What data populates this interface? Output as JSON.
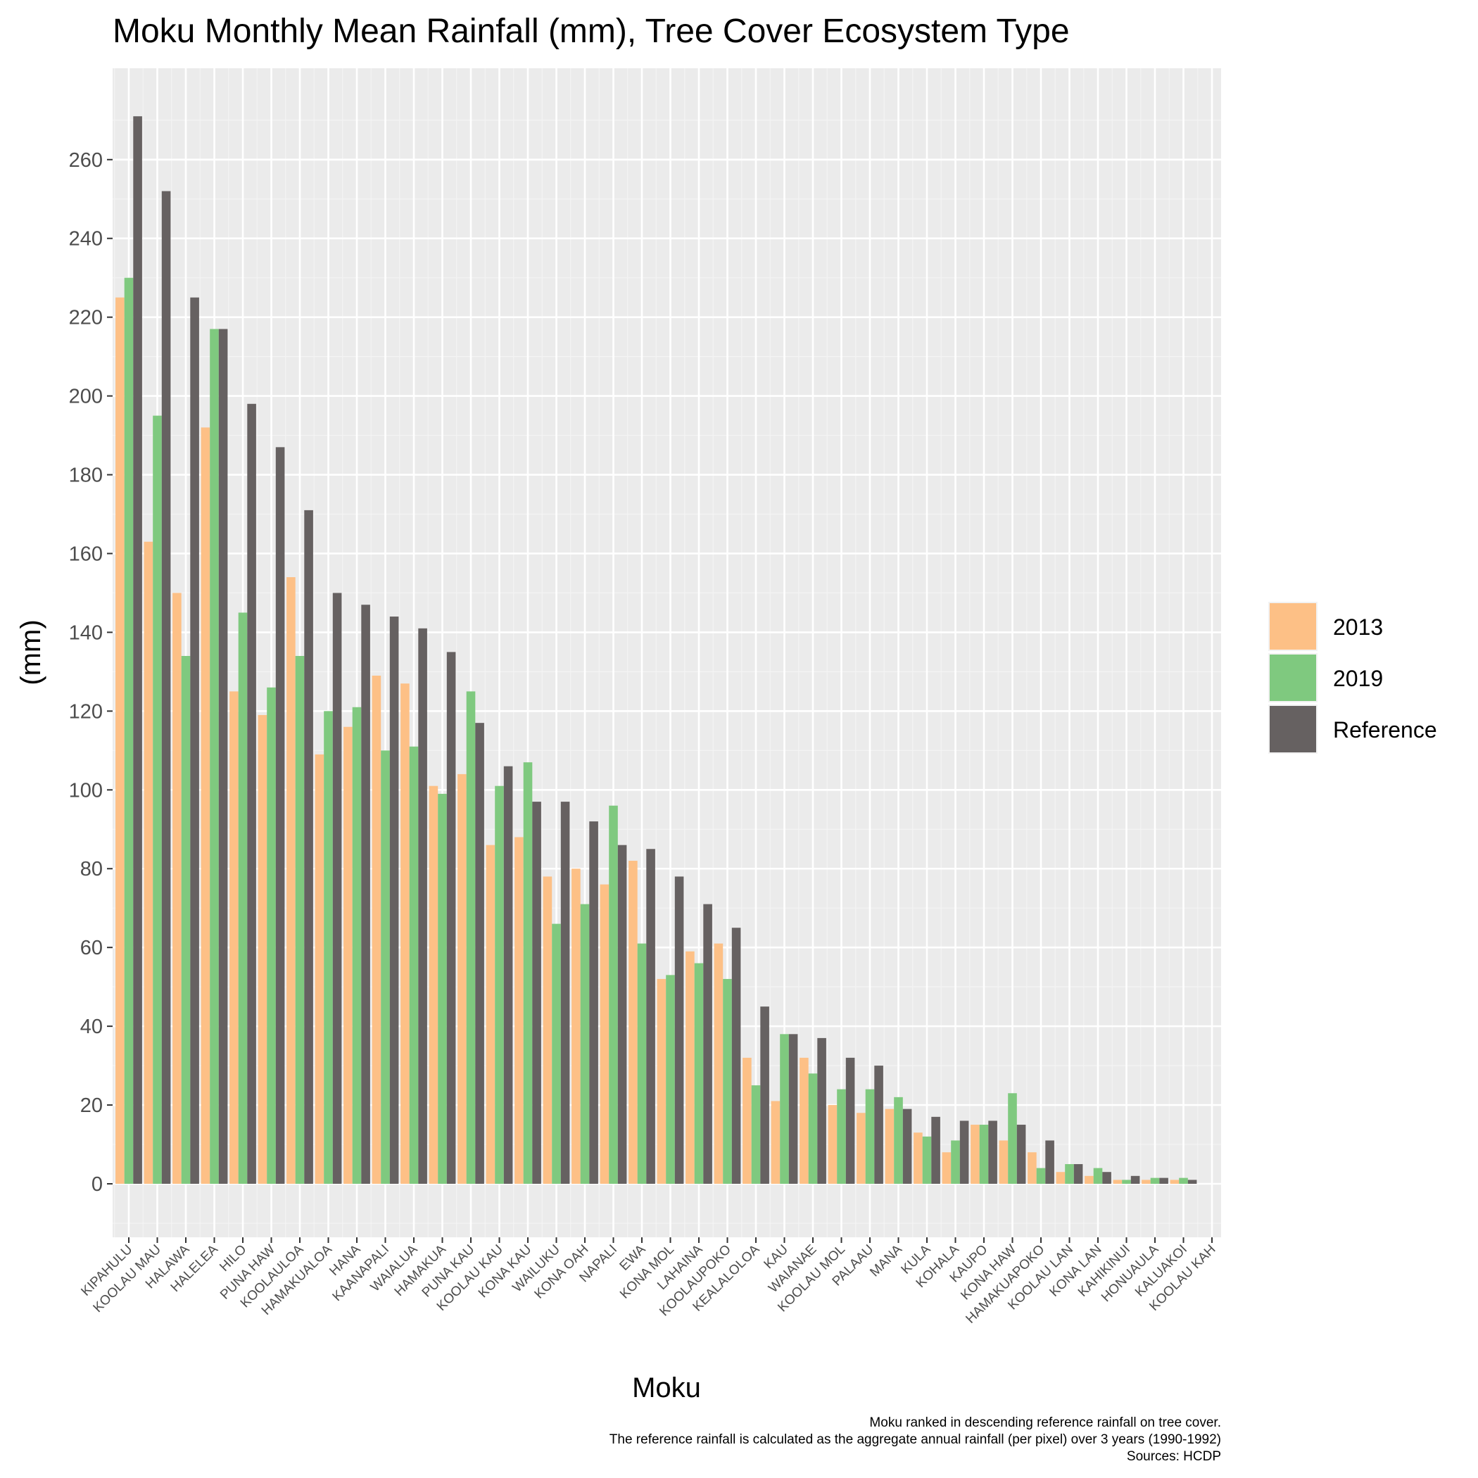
{
  "chart_data": {
    "type": "bar",
    "title": "Moku Monthly Mean Rainfall (mm), Tree Cover Ecosystem Type",
    "xlabel": "Moku",
    "ylabel": "(mm)",
    "ylim": [
      -12,
      285
    ],
    "yticks": [
      0,
      20,
      40,
      60,
      80,
      100,
      120,
      140,
      160,
      180,
      200,
      220,
      240,
      260
    ],
    "grid": true,
    "legend_position": "right",
    "categories": [
      "KIPAHULU",
      "KOOLAU MAU",
      "HALAWA",
      "HALELEA",
      "HILO",
      "PUNA HAW",
      "KOOLAULOA",
      "HAMAKUALOA",
      "HANA",
      "KAANAPALI",
      "WAIALUA",
      "HAMAKUA",
      "PUNA KAU",
      "KOOLAU KAU",
      "KONA KAU",
      "WAILUKU",
      "KONA OAH",
      "NAPALI",
      "EWA",
      "KONA MOL",
      "LAHAINA",
      "KOOLAUPOKO",
      "KEALALOLOA",
      "KAU",
      "WAIANAE",
      "KOOLAU MOL",
      "PALAAU",
      "MANA",
      "KULA",
      "KOHALA",
      "KAUPO",
      "KONA HAW",
      "HAMAKUAPOKO",
      "KOOLAU LAN",
      "KONA LAN",
      "KAHIKINUI",
      "HONUAULA",
      "KALUAKOI",
      "KOOLAU KAH"
    ],
    "series": [
      {
        "name": "2013",
        "color": "#fdc086",
        "values": [
          225,
          163,
          150,
          192,
          125,
          119,
          154,
          109,
          116,
          129,
          127,
          101,
          104,
          86,
          88,
          78,
          80,
          76,
          82,
          52,
          59,
          61,
          32,
          21,
          32,
          20,
          18,
          19,
          13,
          8,
          15,
          11,
          8,
          3,
          2,
          1,
          1,
          1,
          0
        ]
      },
      {
        "name": "2019",
        "color": "#7fc97f",
        "values": [
          230,
          195,
          134,
          217,
          145,
          126,
          134,
          120,
          121,
          110,
          111,
          99,
          125,
          101,
          107,
          66,
          71,
          96,
          61,
          53,
          56,
          52,
          25,
          38,
          28,
          24,
          24,
          22,
          12,
          11,
          15,
          23,
          4,
          5,
          4,
          1,
          1.5,
          1.5,
          0
        ]
      },
      {
        "name": "Reference",
        "color": "#666161",
        "values": [
          271,
          252,
          225,
          217,
          198,
          187,
          171,
          150,
          147,
          144,
          141,
          135,
          117,
          106,
          97,
          97,
          92,
          86,
          85,
          78,
          71,
          65,
          45,
          38,
          37,
          32,
          30,
          19,
          17,
          16,
          16,
          15,
          11,
          5,
          3,
          2,
          1.5,
          1,
          0
        ]
      }
    ],
    "caption_lines": [
      "Moku ranked in descending reference rainfall on tree cover.",
      "The reference rainfall is calculated as the aggregate annual rainfall (per pixel) over 3 years (1990-1992)",
      "Sources: HCDP"
    ]
  }
}
